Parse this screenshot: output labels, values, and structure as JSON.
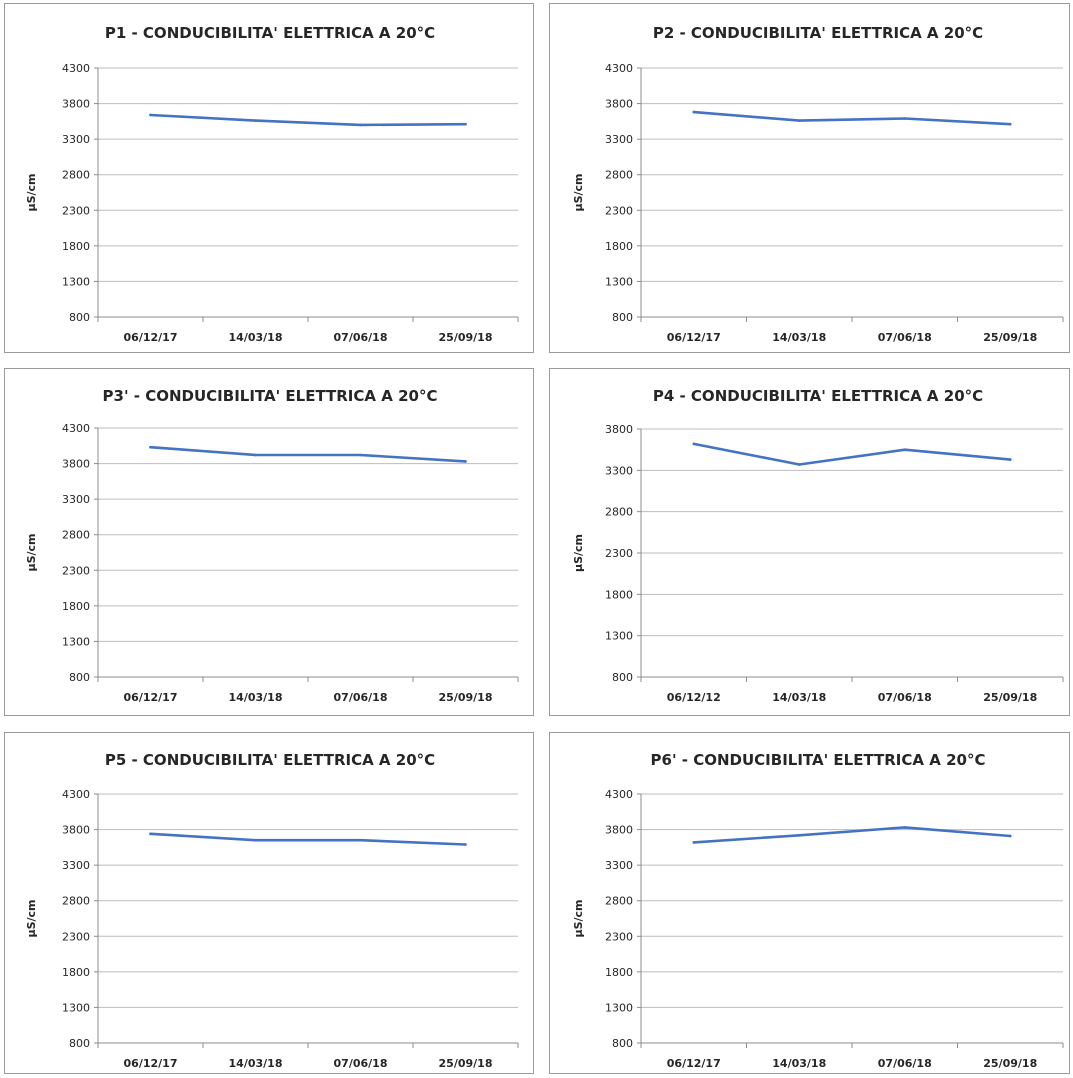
{
  "chart_data": [
    {
      "type": "line",
      "title": "P1 - CONDUCIBILITA' ELETTRICA A 20°C",
      "ylabel": "µS/cm",
      "xlabel": "",
      "categories": [
        "06/12/17",
        "14/03/18",
        "07/06/18",
        "25/09/18"
      ],
      "yticks": [
        "4300",
        "3800",
        "3300",
        "2800",
        "2300",
        "1800",
        "1300",
        "800"
      ],
      "ylim": [
        800,
        4300
      ],
      "series": [
        {
          "values": [
            3640,
            3560,
            3500,
            3510
          ]
        }
      ],
      "line_color": "#4472c4",
      "grid": true
    },
    {
      "type": "line",
      "title": "P2 - CONDUCIBILITA' ELETTRICA A 20°C",
      "ylabel": "µS/cm",
      "xlabel": "",
      "categories": [
        "06/12/17",
        "14/03/18",
        "07/06/18",
        "25/09/18"
      ],
      "yticks": [
        "4300",
        "3800",
        "3300",
        "2800",
        "2300",
        "1800",
        "1300",
        "800"
      ],
      "ylim": [
        800,
        4300
      ],
      "series": [
        {
          "values": [
            3680,
            3560,
            3590,
            3510
          ]
        }
      ],
      "line_color": "#4472c4",
      "grid": true
    },
    {
      "type": "line",
      "title": "P3' - CONDUCIBILITA' ELETTRICA A 20°C",
      "ylabel": "µS/cm",
      "xlabel": "",
      "categories": [
        "06/12/17",
        "14/03/18",
        "07/06/18",
        "25/09/18"
      ],
      "yticks": [
        "4300",
        "3800",
        "3300",
        "2800",
        "2300",
        "1800",
        "1300",
        "800"
      ],
      "ylim": [
        800,
        4300
      ],
      "series": [
        {
          "values": [
            4030,
            3920,
            3920,
            3830
          ]
        }
      ],
      "line_color": "#4472c4",
      "grid": true
    },
    {
      "type": "line",
      "title": "P4 - CONDUCIBILITA' ELETTRICA A 20°C",
      "ylabel": "µS/cm",
      "xlabel": "",
      "categories": [
        "06/12/12",
        "14/03/18",
        "07/06/18",
        "25/09/18"
      ],
      "yticks": [
        "3800",
        "3300",
        "2800",
        "2300",
        "1800",
        "1300",
        "800"
      ],
      "ylim": [
        800,
        3800
      ],
      "series": [
        {
          "values": [
            3620,
            3370,
            3550,
            3430
          ]
        }
      ],
      "line_color": "#4472c4",
      "grid": true
    },
    {
      "type": "line",
      "title": "P5 - CONDUCIBILITA' ELETTRICA A 20°C",
      "ylabel": "µS/cm",
      "xlabel": "",
      "categories": [
        "06/12/17",
        "14/03/18",
        "07/06/18",
        "25/09/18"
      ],
      "yticks": [
        "4300",
        "3800",
        "3300",
        "2800",
        "2300",
        "1800",
        "1300",
        "800"
      ],
      "ylim": [
        800,
        4300
      ],
      "series": [
        {
          "values": [
            3740,
            3650,
            3650,
            3590
          ]
        }
      ],
      "line_color": "#4472c4",
      "grid": true
    },
    {
      "type": "line",
      "title": "P6' - CONDUCIBILITA' ELETTRICA A 20°C",
      "ylabel": "µS/cm",
      "xlabel": "",
      "categories": [
        "06/12/17",
        "14/03/18",
        "07/06/18",
        "25/09/18"
      ],
      "yticks": [
        "4300",
        "3800",
        "3300",
        "2800",
        "2300",
        "1800",
        "1300",
        "800"
      ],
      "ylim": [
        800,
        4300
      ],
      "series": [
        {
          "values": [
            3620,
            3720,
            3830,
            3710
          ]
        }
      ],
      "line_color": "#4472c4",
      "grid": true
    }
  ]
}
